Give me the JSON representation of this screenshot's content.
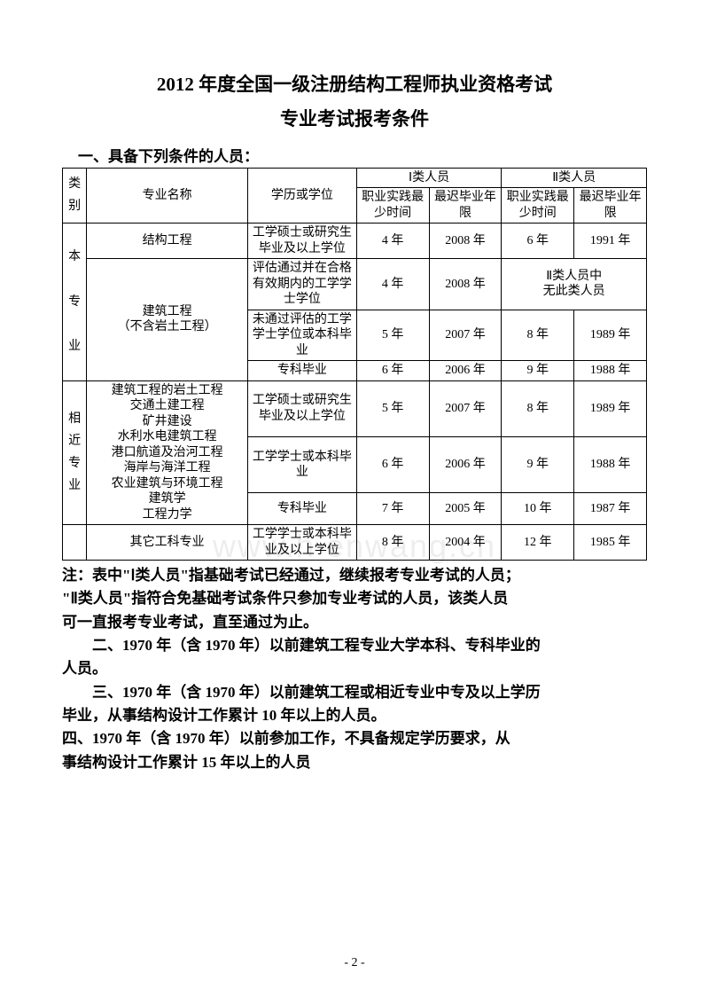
{
  "title_line1": "2012 年度全国一级注册结构工程师执业资格考试",
  "title_line2": "专业考试报考条件",
  "section1_heading": "一、具备下列条件的人员：",
  "table": {
    "header": {
      "category": "类别",
      "major": "专业名称",
      "education": "学历或学位",
      "group1": "Ⅰ类人员",
      "group2": "Ⅱ类人员",
      "col_practice": "职业实践最少时间",
      "col_gradyear": "最迟毕业年限"
    },
    "cat1_label": "本\n\n专\n\n业",
    "cat2_label": "相\n近\n专\n业",
    "rows": [
      {
        "major": "结构工程",
        "edu": "工学硕士或研究生毕业及以上学位",
        "p1": "4 年",
        "y1": "2008 年",
        "p2": "6 年",
        "y2": "1991 年"
      },
      {
        "major_group": "建筑工程\n（不含岩土工程）",
        "edu": "评估通过并在合格有效期内的工学学士学位",
        "p1": "4 年",
        "y1": "2008 年",
        "merged2": "Ⅱ类人员中\n无此类人员"
      },
      {
        "edu": "未通过评估的工学学士学位或本科毕业",
        "p1": "5 年",
        "y1": "2007 年",
        "p2": "8 年",
        "y2": "1989 年"
      },
      {
        "edu": "专科毕业",
        "p1": "6 年",
        "y1": "2006 年",
        "p2": "9 年",
        "y2": "1988 年"
      },
      {
        "major_group2": "建筑工程的岩土工程\n交通土建工程\n矿井建设\n水利水电建筑工程\n港口航道及治河工程\n海岸与海洋工程\n农业建筑与环境工程\n建筑学\n工程力学",
        "edu": "工学硕士或研究生毕业及以上学位",
        "p1": "5 年",
        "y1": "2007 年",
        "p2": "8 年",
        "y2": "1989 年"
      },
      {
        "edu": "工学学士或本科毕业",
        "p1": "6 年",
        "y1": "2006 年",
        "p2": "9 年",
        "y2": "1988 年"
      },
      {
        "edu": "专科毕业",
        "p1": "7 年",
        "y1": "2005 年",
        "p2": "10 年",
        "y2": "1987 年"
      },
      {
        "major": "其它工科专业",
        "edu": "工学学士或本科毕业及以上学位",
        "p1": "8 年",
        "y1": "2004 年",
        "p2": "12 年",
        "y2": "1985 年"
      }
    ]
  },
  "notes": {
    "n1a": "注：表中\"Ⅰ类人员\"指基础考试已经通过，继续报考专业考试的人员；",
    "n1b": "\"Ⅱ类人员\"指符合免基础考试条件只参加专业考试的人员，该类人员",
    "n1c": "可一直报考专业考试，直至通过为止。",
    "n2a": "二、1970 年（含 1970 年）以前建筑工程专业大学本科、专科毕业的",
    "n2b": "人员。",
    "n3a": "三、1970 年（含 1970 年）以前建筑工程或相近专业中专及以上学历",
    "n3b": "毕业，从事结构设计工作累计 10 年以上的人员。",
    "n4a": "四、1970 年（含 1970 年）以前参加工作，不具备规定学历要求，从",
    "n4b": "事结构设计工作累计 15 年以上的人员"
  },
  "page_number": "- 2 -",
  "watermark": "www.h          enwang.cn"
}
